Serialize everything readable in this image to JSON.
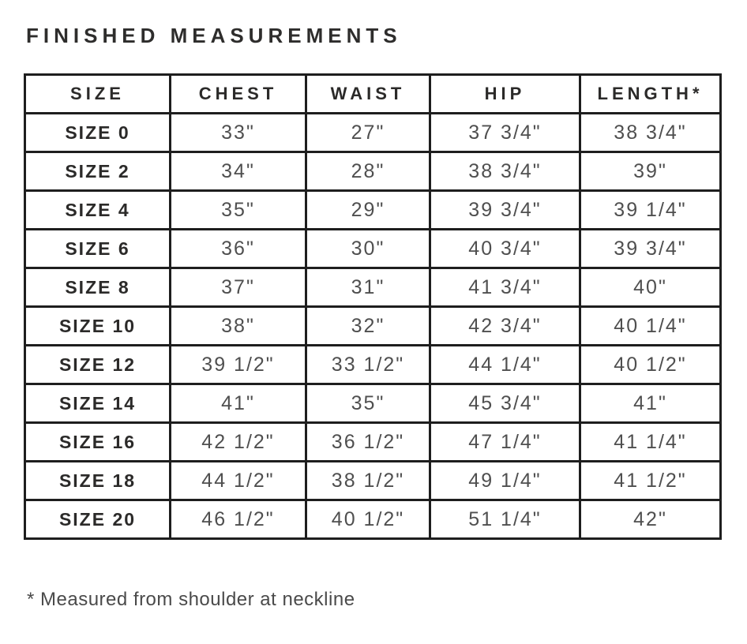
{
  "title": "FINISHED MEASUREMENTS",
  "footnote": "* Measured from shoulder at neckline",
  "colors": {
    "border": "#1e1e1e",
    "heading_text": "#2b2a29",
    "value_text": "#4f4f4f",
    "background": "#ffffff"
  },
  "table": {
    "headers": [
      "SIZE",
      "CHEST",
      "WAIST",
      "HIP",
      "LENGTH*"
    ],
    "rows": [
      {
        "size": "SIZE 0",
        "chest": "33\"",
        "waist": "27\"",
        "hip": "37 3/4\"",
        "length": "38 3/4\""
      },
      {
        "size": "SIZE 2",
        "chest": "34\"",
        "waist": "28\"",
        "hip": "38 3/4\"",
        "length": "39\""
      },
      {
        "size": "SIZE 4",
        "chest": "35\"",
        "waist": "29\"",
        "hip": "39 3/4\"",
        "length": "39 1/4\""
      },
      {
        "size": "SIZE 6",
        "chest": "36\"",
        "waist": "30\"",
        "hip": "40 3/4\"",
        "length": "39 3/4\""
      },
      {
        "size": "SIZE 8",
        "chest": "37\"",
        "waist": "31\"",
        "hip": "41 3/4\"",
        "length": "40\""
      },
      {
        "size": "SIZE 10",
        "chest": "38\"",
        "waist": "32\"",
        "hip": "42 3/4\"",
        "length": "40 1/4\""
      },
      {
        "size": "SIZE 12",
        "chest": "39 1/2\"",
        "waist": "33 1/2\"",
        "hip": "44 1/4\"",
        "length": "40 1/2\""
      },
      {
        "size": "SIZE 14",
        "chest": "41\"",
        "waist": "35\"",
        "hip": "45 3/4\"",
        "length": "41\""
      },
      {
        "size": "SIZE 16",
        "chest": "42 1/2\"",
        "waist": "36 1/2\"",
        "hip": "47 1/4\"",
        "length": "41 1/4\""
      },
      {
        "size": "SIZE 18",
        "chest": "44 1/2\"",
        "waist": "38 1/2\"",
        "hip": "49 1/4\"",
        "length": "41 1/2\""
      },
      {
        "size": "SIZE 20",
        "chest": "46 1/2\"",
        "waist": "40 1/2\"",
        "hip": "51 1/4\"",
        "length": "42\""
      }
    ]
  }
}
